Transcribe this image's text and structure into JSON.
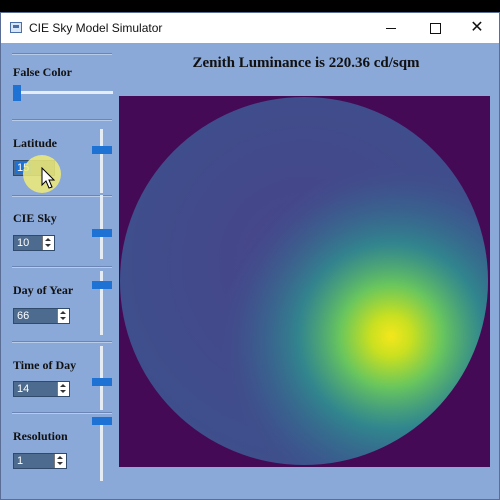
{
  "window": {
    "title": "CIE Sky Model Simulator"
  },
  "header": {
    "zenith_text": "Zenith Luminance is 220.36 cd/sqm"
  },
  "sidebar": {
    "false_color": {
      "label": "False Color",
      "slider_fraction": 0.0
    },
    "latitude": {
      "label": "Latitude",
      "value": "15",
      "slider_fraction": 0.3
    },
    "cie_sky": {
      "label": "CIE Sky",
      "value": "10",
      "slider_fraction": 0.6
    },
    "day_of_year": {
      "label": "Day of Year",
      "value": "66",
      "slider_fraction": 0.18
    },
    "time_of_day": {
      "label": "Time of Day",
      "value": "14",
      "slider_fraction": 0.58
    },
    "resolution": {
      "label": "Resolution",
      "value": "1",
      "slider_fraction": 0.0
    }
  },
  "sky": {
    "colors": {
      "background": "#450a55",
      "disk": "#46408a",
      "sun_center": "#f4e71c",
      "sun_mid": "#7fd34e",
      "sun_outer": "#2a9d8f"
    }
  },
  "icons": [
    "app-icon",
    "minimize-icon",
    "maximize-icon",
    "close-icon",
    "mouse-cursor-icon"
  ]
}
